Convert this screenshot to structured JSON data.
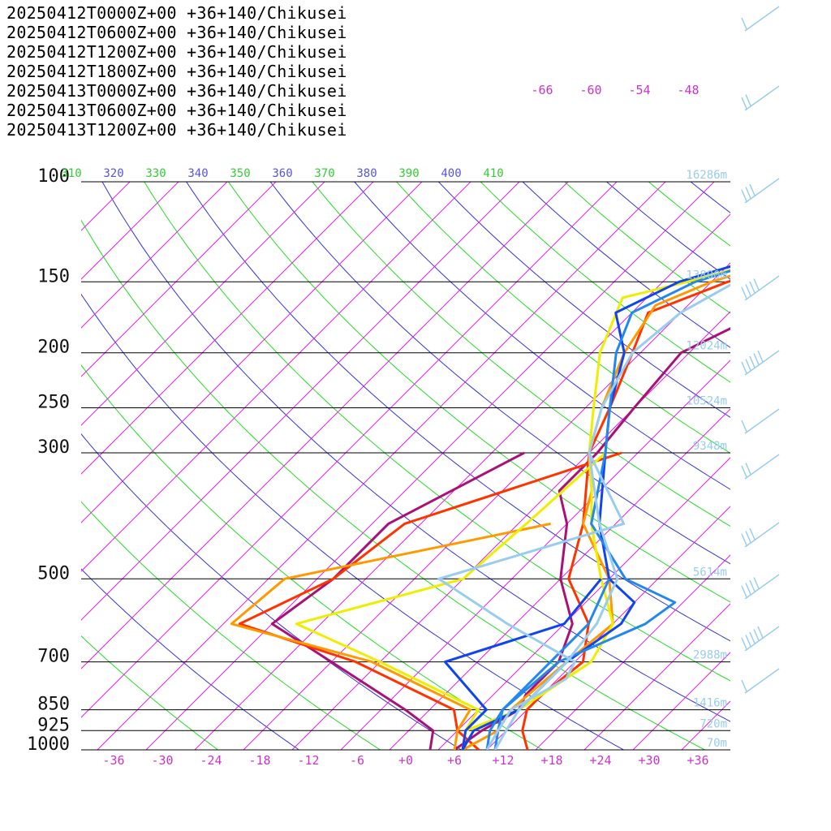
{
  "chart_data": {
    "type": "line",
    "subtype": "skew-T log-p diagram",
    "legend_placement": "top-left",
    "xlabel": "",
    "ylabel": "",
    "x_unit": "degC",
    "xlim": [
      -40,
      40
    ],
    "ylim": [
      1000,
      100
    ],
    "y_scale": "log",
    "grid": true,
    "pressure_levels": [
      {
        "p": 100,
        "label": "100",
        "height": "16286m"
      },
      {
        "p": 150,
        "label": "150",
        "height": "13800m"
      },
      {
        "p": 200,
        "label": "200",
        "height": "12024m"
      },
      {
        "p": 250,
        "label": "250",
        "height": "10524m"
      },
      {
        "p": 300,
        "label": "300",
        "height": "9348m"
      },
      {
        "p": 500,
        "label": "500",
        "height": "5614m"
      },
      {
        "p": 700,
        "label": "700",
        "height": "2988m"
      },
      {
        "p": 850,
        "label": "850",
        "height": "1416m"
      },
      {
        "p": 925,
        "label": "925",
        "height": "720m"
      },
      {
        "p": 1000,
        "label": "1000",
        "height": "70m"
      }
    ],
    "x_ticks": [
      {
        "v": -36,
        "label": "-36"
      },
      {
        "v": -30,
        "label": "-30"
      },
      {
        "v": -24,
        "label": "-24"
      },
      {
        "v": -18,
        "label": "-18"
      },
      {
        "v": -12,
        "label": "-12"
      },
      {
        "v": -6,
        "label": "-6"
      },
      {
        "v": 0,
        "label": "+0"
      },
      {
        "v": 6,
        "label": "+6"
      },
      {
        "v": 12,
        "label": "+12"
      },
      {
        "v": 18,
        "label": "+18"
      },
      {
        "v": 24,
        "label": "+24"
      },
      {
        "v": 30,
        "label": "+30"
      },
      {
        "v": 36,
        "label": "+36"
      }
    ],
    "upper_temp_labels": [
      "-66",
      "-60",
      "-54",
      "-48"
    ],
    "theta_labels": [
      "310",
      "320",
      "330",
      "340",
      "350",
      "360",
      "370",
      "380",
      "390",
      "400",
      "410"
    ],
    "series": [
      {
        "name": "20250412T0000Z+00 +36+140/Chikusei",
        "color": "#aa1177",
        "temperature": [
          [
            1000,
            6
          ],
          [
            925,
            7
          ],
          [
            850,
            9
          ],
          [
            800,
            8
          ],
          [
            700,
            8
          ],
          [
            600,
            5
          ],
          [
            500,
            -2
          ],
          [
            400,
            -8
          ],
          [
            350,
            -13
          ],
          [
            300,
            -13
          ],
          [
            250,
            -14
          ],
          [
            200,
            -15
          ],
          [
            150,
            -6
          ],
          [
            120,
            3
          ],
          [
            100,
            6
          ],
          [
            70,
            8
          ],
          [
            50,
            11
          ]
        ],
        "dewpoint": [
          [
            1000,
            3
          ],
          [
            925,
            1
          ],
          [
            850,
            -5
          ],
          [
            700,
            -20
          ],
          [
            600,
            -32
          ],
          [
            500,
            -30
          ],
          [
            400,
            -30
          ],
          [
            300,
            -22
          ]
        ]
      },
      {
        "name": "20250412T0600Z+00 +36+140/Chikusei",
        "color": "#ff3300",
        "temperature": [
          [
            1000,
            15
          ],
          [
            925,
            12
          ],
          [
            850,
            10
          ],
          [
            800,
            10
          ],
          [
            700,
            11
          ],
          [
            600,
            7
          ],
          [
            500,
            -1
          ],
          [
            400,
            -6
          ],
          [
            300,
            -14
          ],
          [
            250,
            -17
          ],
          [
            200,
            -21
          ],
          [
            170,
            -24
          ],
          [
            150,
            -18
          ],
          [
            120,
            1
          ],
          [
            100,
            1
          ],
          [
            70,
            9
          ],
          [
            50,
            10
          ]
        ],
        "dewpoint": [
          [
            1000,
            9
          ],
          [
            925,
            4
          ],
          [
            850,
            1
          ],
          [
            700,
            -17
          ],
          [
            600,
            -36
          ],
          [
            500,
            -30
          ],
          [
            400,
            -28
          ],
          [
            300,
            -10
          ]
        ]
      },
      {
        "name": "20250412T1200Z+00 +36+140/Chikusei",
        "color": "#ff9900",
        "temperature": [
          [
            1000,
            7
          ],
          [
            925,
            9
          ],
          [
            850,
            8
          ],
          [
            700,
            9
          ],
          [
            600,
            10
          ],
          [
            500,
            4
          ],
          [
            400,
            -6
          ],
          [
            350,
            -9
          ],
          [
            300,
            -14
          ],
          [
            250,
            -18
          ],
          [
            200,
            -22
          ],
          [
            165,
            -24
          ],
          [
            150,
            -20
          ],
          [
            120,
            -5
          ],
          [
            100,
            1
          ],
          [
            70,
            10
          ],
          [
            50,
            12
          ]
        ],
        "dewpoint": [
          [
            1000,
            6
          ],
          [
            925,
            4
          ],
          [
            850,
            3
          ],
          [
            700,
            -15
          ],
          [
            600,
            -37
          ],
          [
            500,
            -36
          ],
          [
            400,
            -10
          ]
        ]
      },
      {
        "name": "20250412T1800Z+00 +36+140/Chikusei",
        "color": "#eeee00",
        "temperature": [
          [
            1000,
            7
          ],
          [
            925,
            5
          ],
          [
            850,
            9
          ],
          [
            700,
            12
          ],
          [
            600,
            10
          ],
          [
            500,
            3
          ],
          [
            400,
            -5
          ],
          [
            350,
            -9
          ],
          [
            300,
            -14
          ],
          [
            250,
            -19
          ],
          [
            200,
            -25
          ],
          [
            160,
            -29
          ],
          [
            150,
            -23
          ],
          [
            120,
            -5
          ],
          [
            100,
            -6
          ],
          [
            70,
            10
          ],
          [
            50,
            13
          ]
        ],
        "dewpoint": [
          [
            1000,
            7
          ],
          [
            925,
            5
          ],
          [
            850,
            4
          ],
          [
            700,
            -14
          ],
          [
            600,
            -29
          ],
          [
            500,
            -14
          ],
          [
            400,
            -13
          ],
          [
            300,
            -12
          ]
        ]
      },
      {
        "name": "20250413T0000Z+00 +36+140/Chikusei",
        "color": "#1144ee",
        "temperature": [
          [
            1000,
            7
          ],
          [
            925,
            6
          ],
          [
            850,
            9
          ],
          [
            700,
            9
          ],
          [
            600,
            11
          ],
          [
            550,
            10
          ],
          [
            500,
            4
          ],
          [
            400,
            -4
          ],
          [
            300,
            -12
          ],
          [
            250,
            -17
          ],
          [
            200,
            -22
          ],
          [
            170,
            -28
          ],
          [
            150,
            -24
          ],
          [
            120,
            -8
          ],
          [
            100,
            -5
          ],
          [
            70,
            9
          ],
          [
            50,
            12
          ]
        ],
        "dewpoint": [
          [
            1000,
            7
          ],
          [
            925,
            5
          ],
          [
            850,
            5
          ],
          [
            700,
            -6
          ],
          [
            600,
            4
          ],
          [
            500,
            3
          ]
        ]
      },
      {
        "name": "20250413T0600Z+00 +36+140/Chikusei",
        "color": "#2288ee",
        "temperature": [
          [
            1000,
            11
          ],
          [
            925,
            9
          ],
          [
            850,
            7
          ],
          [
            700,
            8
          ],
          [
            600,
            14
          ],
          [
            550,
            15
          ],
          [
            500,
            6
          ],
          [
            400,
            -5
          ],
          [
            300,
            -12
          ],
          [
            250,
            -17
          ],
          [
            200,
            -23
          ],
          [
            170,
            -26
          ],
          [
            150,
            -22
          ],
          [
            120,
            -7
          ],
          [
            100,
            -5
          ],
          [
            80,
            0
          ],
          [
            70,
            13
          ],
          [
            50,
            13
          ]
        ],
        "dewpoint": [
          [
            1000,
            10
          ],
          [
            925,
            8
          ],
          [
            850,
            7
          ],
          [
            700,
            7
          ],
          [
            600,
            7
          ],
          [
            500,
            4
          ]
        ]
      },
      {
        "name": "20250413T1200Z+00 +36+140/Chikusei",
        "color": "#99ccee",
        "temperature": [
          [
            1000,
            11
          ],
          [
            925,
            10
          ],
          [
            850,
            9
          ],
          [
            700,
            9
          ],
          [
            600,
            8
          ],
          [
            500,
            5
          ],
          [
            400,
            -4
          ],
          [
            300,
            -14
          ],
          [
            250,
            -18
          ],
          [
            200,
            -21
          ],
          [
            170,
            -20
          ],
          [
            150,
            -17
          ],
          [
            120,
            -4
          ],
          [
            100,
            -3
          ],
          [
            70,
            10
          ],
          [
            50,
            12
          ]
        ],
        "dewpoint": [
          [
            1000,
            10
          ],
          [
            925,
            9
          ],
          [
            850,
            8
          ],
          [
            750,
            11
          ],
          [
            700,
            10
          ],
          [
            600,
            -3
          ],
          [
            500,
            -17
          ],
          [
            400,
            -1
          ],
          [
            300,
            -14
          ]
        ]
      }
    ]
  },
  "colors": {
    "isobar": "#000000",
    "isotherm": "#dd22dd",
    "dry_adiabat_blue": "#3333dd",
    "dry_adiabat_green": "#22dd22",
    "height_label": "#99ccee",
    "tick_label": "#cc33cc",
    "theta_blue": "#5555dd",
    "theta_green": "#33cc33",
    "wind_barb": "#99ccee"
  }
}
